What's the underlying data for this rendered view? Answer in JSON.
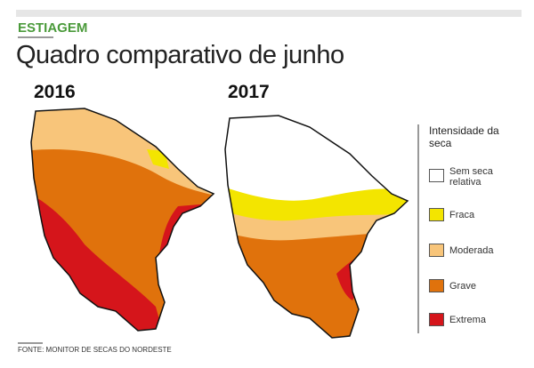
{
  "header": {
    "kicker": "ESTIAGEM",
    "title": "Quadro comparativo de junho"
  },
  "maps": [
    {
      "label": "2016"
    },
    {
      "label": "2017"
    }
  ],
  "legend": {
    "title": "Intensidade da seca",
    "items": [
      {
        "label": "Sem seca relativa",
        "color": "#ffffff"
      },
      {
        "label": "Fraca",
        "color": "#f3e500"
      },
      {
        "label": "Moderada",
        "color": "#f8c57a"
      },
      {
        "label": "Grave",
        "color": "#e0720c"
      },
      {
        "label": "Extrema",
        "color": "#d5151b"
      }
    ]
  },
  "source": "FONTE: MONITOR DE SECAS DO NORDESTE"
}
